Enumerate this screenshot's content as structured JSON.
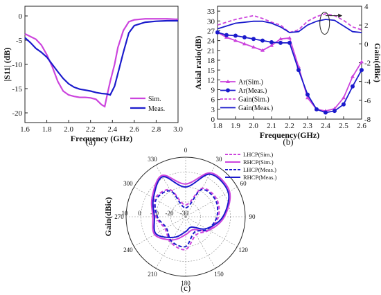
{
  "chart_data": [
    {
      "panel_label": "(a)",
      "type": "line",
      "xlabel": "Frequency (GHz)",
      "ylabel": "|S11| (dB)",
      "xlim": [
        1.6,
        3.0
      ],
      "ylim": [
        -22,
        2
      ],
      "xticks": [
        1.6,
        1.8,
        2.0,
        2.2,
        2.4,
        2.6,
        2.8,
        3.0
      ],
      "xtick_labels": [
        "1.6",
        "1.8",
        "2.0",
        "2.2",
        "2.4",
        "2.6",
        "2.8",
        "3.0"
      ],
      "yticks": [
        0,
        -5,
        -10,
        -15,
        -20
      ],
      "ytick_labels": [
        "0",
        "-5",
        "-10",
        "-15",
        "-20"
      ],
      "legend_position": "bottom-right",
      "series": [
        {
          "name": "Sim.",
          "color": "#cc44dd",
          "style": "solid",
          "x": [
            1.6,
            1.7,
            1.75,
            1.8,
            1.85,
            1.9,
            1.95,
            2.0,
            2.05,
            2.1,
            2.15,
            2.2,
            2.25,
            2.3,
            2.33,
            2.35,
            2.38,
            2.42,
            2.45,
            2.5,
            2.55,
            2.6,
            2.7,
            2.8,
            2.9,
            3.0
          ],
          "y": [
            -3.7,
            -4.8,
            -6.0,
            -8.0,
            -10.5,
            -13.5,
            -15.5,
            -16.3,
            -16.6,
            -16.8,
            -16.8,
            -16.9,
            -17.2,
            -18.3,
            -18.7,
            -16.5,
            -13.5,
            -10.0,
            -6.5,
            -3.0,
            -1.2,
            -0.8,
            -0.6,
            -0.6,
            -0.6,
            -0.7
          ]
        },
        {
          "name": "Meas.",
          "color": "#1a1acc",
          "style": "solid",
          "x": [
            1.6,
            1.65,
            1.7,
            1.75,
            1.8,
            1.85,
            1.9,
            1.95,
            2.0,
            2.05,
            2.1,
            2.15,
            2.2,
            2.25,
            2.3,
            2.35,
            2.38,
            2.42,
            2.46,
            2.5,
            2.55,
            2.6,
            2.7,
            2.8,
            2.9,
            3.0
          ],
          "y": [
            -4.5,
            -5.5,
            -6.7,
            -7.5,
            -8.5,
            -10.0,
            -11.5,
            -12.9,
            -14.0,
            -14.7,
            -15.1,
            -15.3,
            -15.5,
            -15.8,
            -16.0,
            -16.1,
            -16.3,
            -14.5,
            -11.0,
            -7.5,
            -3.5,
            -2.0,
            -1.3,
            -1.1,
            -1.0,
            -1.0
          ]
        }
      ]
    },
    {
      "panel_label": "(b)",
      "type": "line",
      "xlabel": "Frequency(GHz)",
      "ylabel": "Axial ratio(dB)",
      "ylabel_right": "Gain(dBic)",
      "xlim": [
        1.8,
        2.6
      ],
      "ylim": [
        0,
        34.5
      ],
      "ylim_right": [
        -8,
        4
      ],
      "xticks": [
        1.8,
        1.9,
        2.0,
        2.1,
        2.2,
        2.3,
        2.4,
        2.5,
        2.6
      ],
      "xtick_labels": [
        "1.8",
        "1.9",
        "2.0",
        "2.1",
        "2.2",
        "2.3",
        "2.4",
        "2.5",
        "2.6"
      ],
      "yticks": [
        0,
        3,
        6,
        9,
        12,
        15,
        18,
        21,
        24,
        27,
        30,
        33
      ],
      "ytick_labels": [
        "0",
        "3",
        "6",
        "9",
        "12",
        "15",
        "18",
        "21",
        "24",
        "27",
        "30",
        "33"
      ],
      "yticks_right": [
        -8,
        -6,
        -4,
        -2,
        0,
        2,
        4
      ],
      "ytick_labels_right": [
        "-8",
        "-6",
        "-4",
        "-2",
        "0",
        "2",
        "4"
      ],
      "legend_position": "bottom-left",
      "series": [
        {
          "name": "Ar(Sim.)",
          "color": "#cc44dd",
          "style": "solid",
          "marker": "triangle",
          "axis": "left",
          "x": [
            1.8,
            1.85,
            1.9,
            1.95,
            2.0,
            2.05,
            2.1,
            2.15,
            2.2,
            2.25,
            2.3,
            2.35,
            2.4,
            2.45,
            2.5,
            2.55,
            2.6
          ],
          "y": [
            26.5,
            25.0,
            24.0,
            23.0,
            22.0,
            21.0,
            22.5,
            24.5,
            24.8,
            16.0,
            6.5,
            3.0,
            2.5,
            3.2,
            6.5,
            13.0,
            17.5
          ]
        },
        {
          "name": "Ar(Meas.)",
          "color": "#1a1acc",
          "style": "solid",
          "marker": "circle",
          "axis": "left",
          "x": [
            1.8,
            1.85,
            1.9,
            1.95,
            2.0,
            2.05,
            2.1,
            2.15,
            2.2,
            2.25,
            2.3,
            2.35,
            2.4,
            2.45,
            2.5,
            2.55,
            2.6
          ],
          "y": [
            26.5,
            25.7,
            25.5,
            25.0,
            24.5,
            24.0,
            23.5,
            23.3,
            23.3,
            15.0,
            7.5,
            3.0,
            2.0,
            2.5,
            4.5,
            10.0,
            15.0
          ]
        },
        {
          "name": "Gain(Sim.)",
          "color": "#cc44dd",
          "style": "dashed",
          "axis": "right",
          "x": [
            1.8,
            1.9,
            2.0,
            2.05,
            2.1,
            2.15,
            2.2,
            2.25,
            2.3,
            2.35,
            2.4,
            2.45,
            2.5,
            2.55,
            2.6
          ],
          "y": [
            2.0,
            2.6,
            3.0,
            2.7,
            2.3,
            2.0,
            1.2,
            1.5,
            2.4,
            2.9,
            3.2,
            3.0,
            2.5,
            1.8,
            1.5
          ]
        },
        {
          "name": "Gain(Meas.)",
          "color": "#1a1acc",
          "style": "solid",
          "axis": "right",
          "x": [
            1.8,
            1.9,
            2.0,
            2.05,
            2.1,
            2.15,
            2.2,
            2.25,
            2.3,
            2.35,
            2.4,
            2.45,
            2.5,
            2.55,
            2.6
          ],
          "y": [
            1.6,
            2.2,
            2.4,
            2.4,
            2.2,
            1.8,
            1.2,
            1.3,
            2.0,
            2.4,
            2.6,
            2.5,
            1.9,
            1.3,
            1.2
          ]
        }
      ]
    },
    {
      "panel_label": "(c)",
      "type": "polar",
      "ylabel": "Gain(dBic)",
      "r_range": [
        -30,
        10
      ],
      "r_ticks": [
        10,
        0,
        -10,
        -20,
        -30
      ],
      "r_tick_labels": [
        "10",
        "0",
        "-10",
        "-20",
        "-30"
      ],
      "angle_labels": [
        "0",
        "30",
        "60",
        "90",
        "120",
        "150",
        "180",
        "210",
        "240",
        "270",
        "300",
        "330"
      ],
      "legend_position": "top-right",
      "series": [
        {
          "name": "LHCP(Sim.)",
          "color": "#cc44dd",
          "style": "dashed",
          "theta": [
            0,
            30,
            60,
            90,
            120,
            150,
            180,
            210,
            240,
            270,
            300,
            330,
            360
          ],
          "r": [
            -22,
            -8,
            -6,
            -8,
            -12,
            -16,
            -8,
            -10,
            -14,
            -10,
            -6,
            -9,
            -22
          ]
        },
        {
          "name": "RHCP(Sim.)",
          "color": "#cc44dd",
          "style": "solid",
          "theta": [
            0,
            30,
            60,
            90,
            120,
            150,
            180,
            210,
            240,
            270,
            300,
            330,
            360
          ],
          "r": [
            -8,
            4,
            4,
            -4,
            -12,
            -20,
            -18,
            -12,
            -6,
            -8,
            -4,
            2,
            -8
          ]
        },
        {
          "name": "LHCP(Meas.)",
          "color": "#1a1acc",
          "style": "dashed",
          "theta": [
            0,
            30,
            60,
            90,
            120,
            150,
            180,
            210,
            240,
            270,
            300,
            330,
            360
          ],
          "r": [
            -24,
            -9,
            -7,
            -9,
            -13,
            -18,
            -10,
            -11,
            -15,
            -11,
            -7,
            -10,
            -24
          ]
        },
        {
          "name": "RHCP(Meas.)",
          "color": "#1a1acc",
          "style": "solid",
          "theta": [
            0,
            30,
            60,
            90,
            120,
            150,
            180,
            210,
            240,
            270,
            300,
            330,
            360
          ],
          "r": [
            -10,
            3,
            3,
            -5,
            -14,
            -22,
            -20,
            -14,
            -7,
            -9,
            -5,
            1,
            -10
          ]
        }
      ]
    }
  ]
}
